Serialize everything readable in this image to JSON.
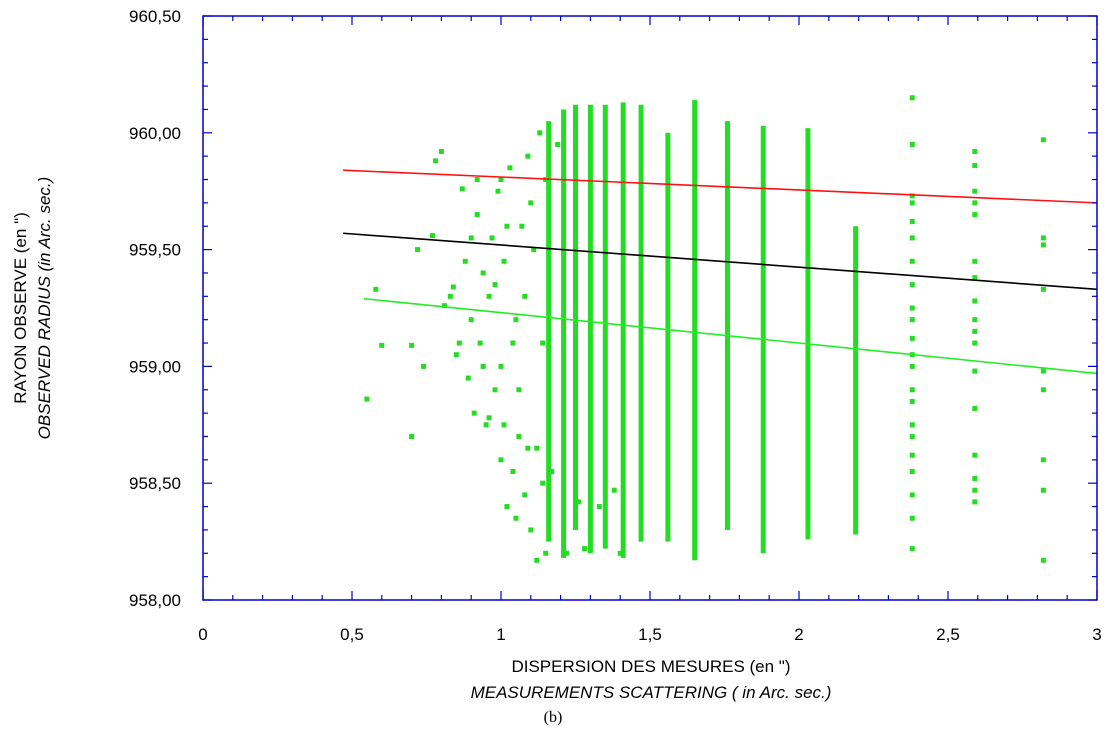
{
  "chart_data": {
    "type": "scatter",
    "title": "",
    "caption": "(b)",
    "xlabel": "DISPERSION DES MESURES (en \")",
    "xlabel_en": "MEASUREMENTS SCATTERING ( in Arc. sec.)",
    "ylabel": "RAYON OBSERVE (en \")",
    "ylabel_en": "OBSERVED RADIUS (in Arc. sec.)",
    "xlim": [
      0,
      3
    ],
    "ylim": [
      958.0,
      960.5
    ],
    "x_ticks": [
      0,
      0.5,
      1,
      1.5,
      2,
      2.5,
      3
    ],
    "x_tick_labels": [
      "0",
      "0,5",
      "1",
      "1,5",
      "2",
      "2,5",
      "3"
    ],
    "y_ticks": [
      958.0,
      958.5,
      959.0,
      959.5,
      960.0,
      960.5
    ],
    "y_tick_labels": [
      "958,00",
      "958,50",
      "959,00",
      "959,50",
      "960,00",
      "960,50"
    ],
    "grid": false,
    "colors": {
      "axis": "#0000cc",
      "points": "#22dd22",
      "upper_line": "#ff1111",
      "middle_line": "#000000",
      "lower_line": "#22ee22"
    },
    "trend_lines": [
      {
        "color_key": "upper_line",
        "x": [
          0.47,
          3.0
        ],
        "y": [
          959.84,
          959.7
        ]
      },
      {
        "color_key": "middle_line",
        "x": [
          0.47,
          3.0
        ],
        "y": [
          959.57,
          959.33
        ]
      },
      {
        "color_key": "lower_line",
        "x": [
          0.54,
          3.0
        ],
        "y": [
          959.29,
          958.97
        ]
      }
    ],
    "columns": [
      {
        "x": 1.16,
        "ymin": 958.25,
        "ymax": 960.05
      },
      {
        "x": 1.21,
        "ymin": 958.18,
        "ymax": 960.1
      },
      {
        "x": 1.25,
        "ymin": 958.3,
        "ymax": 960.12
      },
      {
        "x": 1.3,
        "ymin": 958.2,
        "ymax": 960.12
      },
      {
        "x": 1.35,
        "ymin": 958.22,
        "ymax": 960.12
      },
      {
        "x": 1.41,
        "ymin": 958.18,
        "ymax": 960.13
      },
      {
        "x": 1.47,
        "ymin": 958.25,
        "ymax": 960.12
      },
      {
        "x": 1.56,
        "ymin": 958.25,
        "ymax": 960.0
      },
      {
        "x": 1.65,
        "ymin": 958.17,
        "ymax": 960.14
      },
      {
        "x": 1.76,
        "ymin": 958.3,
        "ymax": 960.05
      },
      {
        "x": 1.88,
        "ymin": 958.2,
        "ymax": 960.03
      },
      {
        "x": 2.03,
        "ymin": 958.26,
        "ymax": 960.02
      },
      {
        "x": 2.19,
        "ymin": 958.28,
        "ymax": 959.6
      }
    ],
    "points": [
      [
        0.55,
        958.86
      ],
      [
        0.58,
        959.33
      ],
      [
        0.6,
        959.09
      ],
      [
        0.7,
        958.7
      ],
      [
        0.7,
        959.09
      ],
      [
        0.74,
        959.0
      ],
      [
        0.77,
        959.56
      ],
      [
        0.8,
        959.92
      ],
      [
        0.78,
        959.88
      ],
      [
        0.81,
        959.26
      ],
      [
        0.84,
        959.34
      ],
      [
        0.85,
        959.05
      ],
      [
        0.87,
        959.76
      ],
      [
        0.88,
        959.45
      ],
      [
        0.89,
        958.95
      ],
      [
        0.9,
        959.2
      ],
      [
        0.91,
        958.8
      ],
      [
        0.92,
        959.65
      ],
      [
        0.93,
        959.1
      ],
      [
        0.94,
        959.4
      ],
      [
        0.95,
        958.75
      ],
      [
        0.96,
        959.3
      ],
      [
        0.97,
        959.55
      ],
      [
        0.98,
        958.9
      ],
      [
        0.99,
        959.75
      ],
      [
        1.0,
        959.0
      ],
      [
        1.0,
        958.6
      ],
      [
        1.01,
        959.45
      ],
      [
        1.02,
        958.4
      ],
      [
        1.03,
        959.85
      ],
      [
        1.04,
        958.55
      ],
      [
        1.05,
        959.2
      ],
      [
        1.06,
        958.7
      ],
      [
        1.07,
        959.6
      ],
      [
        1.08,
        958.45
      ],
      [
        1.09,
        959.9
      ],
      [
        1.1,
        958.3
      ],
      [
        1.11,
        959.5
      ],
      [
        1.12,
        958.65
      ],
      [
        1.12,
        958.17
      ],
      [
        1.13,
        960.0
      ],
      [
        1.14,
        959.1
      ],
      [
        1.14,
        958.5
      ],
      [
        1.15,
        959.8
      ],
      [
        1.17,
        958.55
      ],
      [
        1.19,
        959.95
      ],
      [
        1.22,
        958.2
      ],
      [
        1.26,
        958.42
      ],
      [
        1.28,
        958.22
      ],
      [
        1.33,
        958.4
      ],
      [
        1.38,
        958.47
      ],
      [
        1.4,
        958.2
      ],
      [
        0.72,
        959.5
      ],
      [
        0.83,
        959.3
      ],
      [
        0.9,
        959.55
      ],
      [
        0.94,
        959.0
      ],
      [
        0.96,
        958.78
      ],
      [
        0.98,
        959.35
      ],
      [
        1.02,
        959.6
      ],
      [
        1.04,
        959.1
      ],
      [
        1.06,
        958.9
      ],
      [
        1.08,
        959.3
      ],
      [
        1.1,
        959.7
      ],
      [
        1.0,
        959.8
      ],
      [
        0.92,
        959.8
      ],
      [
        0.86,
        959.1
      ],
      [
        1.05,
        958.35
      ],
      [
        1.09,
        958.65
      ],
      [
        1.15,
        958.2
      ],
      [
        1.01,
        958.75
      ],
      [
        2.38,
        958.22
      ],
      [
        2.38,
        958.35
      ],
      [
        2.38,
        958.45
      ],
      [
        2.38,
        958.55
      ],
      [
        2.38,
        958.62
      ],
      [
        2.38,
        958.7
      ],
      [
        2.38,
        958.75
      ],
      [
        2.38,
        958.85
      ],
      [
        2.38,
        958.9
      ],
      [
        2.38,
        959.0
      ],
      [
        2.38,
        959.05
      ],
      [
        2.38,
        959.12
      ],
      [
        2.38,
        959.2
      ],
      [
        2.38,
        959.25
      ],
      [
        2.38,
        959.35
      ],
      [
        2.38,
        959.45
      ],
      [
        2.38,
        959.55
      ],
      [
        2.38,
        959.62
      ],
      [
        2.38,
        959.7
      ],
      [
        2.38,
        959.73
      ],
      [
        2.38,
        959.95
      ],
      [
        2.38,
        960.15
      ],
      [
        2.59,
        958.42
      ],
      [
        2.59,
        958.47
      ],
      [
        2.59,
        958.52
      ],
      [
        2.59,
        958.62
      ],
      [
        2.59,
        958.82
      ],
      [
        2.59,
        958.98
      ],
      [
        2.59,
        959.1
      ],
      [
        2.59,
        959.15
      ],
      [
        2.59,
        959.2
      ],
      [
        2.59,
        959.28
      ],
      [
        2.59,
        959.38
      ],
      [
        2.59,
        959.45
      ],
      [
        2.59,
        959.65
      ],
      [
        2.59,
        959.7
      ],
      [
        2.59,
        959.75
      ],
      [
        2.59,
        959.86
      ],
      [
        2.59,
        959.92
      ],
      [
        2.82,
        958.17
      ],
      [
        2.82,
        958.47
      ],
      [
        2.82,
        958.6
      ],
      [
        2.82,
        958.9
      ],
      [
        2.82,
        958.98
      ],
      [
        2.82,
        959.33
      ],
      [
        2.82,
        959.52
      ],
      [
        2.82,
        959.55
      ],
      [
        2.82,
        959.97
      ]
    ]
  }
}
